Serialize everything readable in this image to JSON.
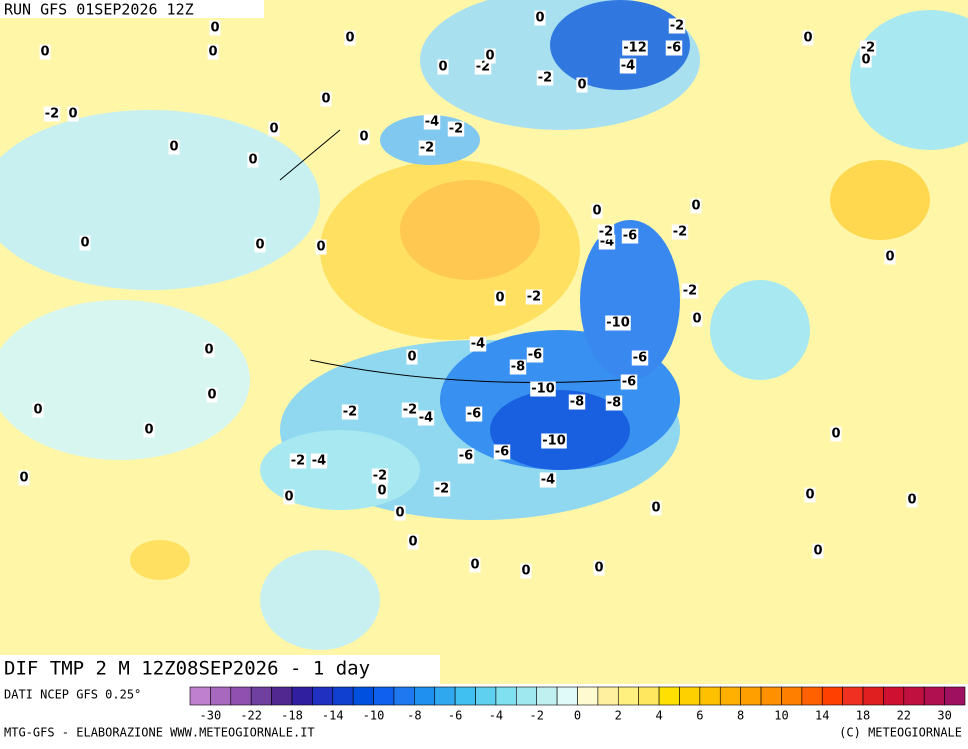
{
  "header": {
    "title": "RUN GFS 01SEP2026 12Z"
  },
  "map": {
    "caption": "DIF TMP 2 M 12Z08SEP2026 - 1 day",
    "labels": [
      0,
      0,
      0,
      0,
      -2,
      0,
      0,
      -2,
      0,
      0,
      -12,
      -6,
      -4,
      -2,
      0,
      -2,
      0,
      0,
      0,
      -4,
      -2,
      -2,
      0,
      0,
      0,
      0,
      -2,
      -4,
      -6,
      0,
      0,
      -2,
      -2,
      -10,
      -2,
      0,
      0,
      0,
      -2,
      -4,
      -6,
      -8,
      -8,
      -10,
      -8,
      -6,
      -6,
      -4,
      -2,
      -2,
      -6,
      -10,
      -6,
      -6,
      -2,
      -4,
      -2,
      -2,
      -4,
      0,
      0,
      0,
      0,
      0,
      0,
      0,
      0,
      0,
      0,
      0,
      0,
      0,
      0,
      0,
      0,
      0,
      0,
      0,
      0,
      0
    ]
  },
  "footer": {
    "source": "DATI NCEP GFS 0.25°",
    "credit": "MTG-GFS - ELABORAZIONE WWW.METEOGIORNALE.IT",
    "copyright": "(C) METEOGIORNALE"
  },
  "colorbar": {
    "ticks": [
      -30,
      -22,
      -18,
      -14,
      -10,
      -8,
      -6,
      -4,
      -2,
      0,
      2,
      4,
      6,
      8,
      10,
      14,
      18,
      22,
      30
    ],
    "colors": [
      "#c080d0",
      "#a868c0",
      "#9050b0",
      "#7040a0",
      "#502890",
      "#3020a0",
      "#2030c0",
      "#1040d0",
      "#0050e0",
      "#1060f0",
      "#2078f0",
      "#2090f0",
      "#30a8f0",
      "#40c0f0",
      "#60d0f0",
      "#80e0f0",
      "#a0e8f0",
      "#c0f0f0",
      "#e0fafa",
      "#fffad0",
      "#fff0a0",
      "#fff080",
      "#ffe860",
      "#ffe000",
      "#ffd000",
      "#ffc000",
      "#ffb000",
      "#ffa000",
      "#ff9000",
      "#ff8000",
      "#ff6000",
      "#ff4000",
      "#f03020",
      "#e02020",
      "#d01030",
      "#c01040",
      "#b01050",
      "#a01060"
    ]
  }
}
